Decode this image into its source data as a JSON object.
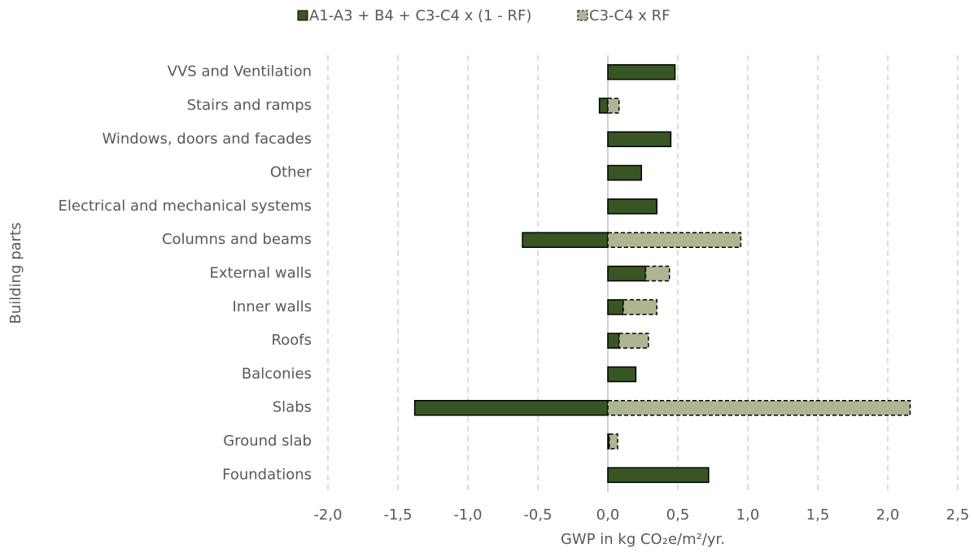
{
  "chart_data": {
    "type": "stacked-bar-horizontal",
    "categories": [
      "VVS and Ventilation",
      "Stairs and ramps",
      "Windows, doors and facades",
      "Other",
      "Electrical and mechanical systems",
      "Columns and beams",
      "External walls",
      "Inner walls",
      "Roofs",
      "Balconies",
      "Slabs",
      "Ground slab",
      "Foundations"
    ],
    "series": [
      {
        "name": "A1-A3 + B4 + C3-C4 x (1 - RF)",
        "color": "#375623",
        "values": [
          0.48,
          -0.06,
          0.45,
          0.24,
          0.35,
          -0.61,
          0.27,
          0.11,
          0.08,
          0.2,
          -1.38,
          0.01,
          0.72
        ]
      },
      {
        "name": "C3-C4 x RF",
        "color": "#adb592",
        "values": [
          0,
          0.08,
          0,
          0,
          0,
          0.95,
          0.17,
          0.24,
          0.21,
          0,
          2.16,
          0.06,
          0
        ]
      }
    ],
    "xlabel": "GWP in kg CO₂e/m²/yr.",
    "ylabel": "Building parts",
    "xlim": [
      -2.0,
      2.5
    ],
    "xticks": [
      {
        "value": -2.0,
        "label": "-2,0"
      },
      {
        "value": -1.5,
        "label": "-1,5"
      },
      {
        "value": -1.0,
        "label": "-1,0"
      },
      {
        "value": -0.5,
        "label": "-0,5"
      },
      {
        "value": 0.0,
        "label": "0,0"
      },
      {
        "value": 0.5,
        "label": "0,5"
      },
      {
        "value": 1.0,
        "label": "1,0"
      },
      {
        "value": 1.5,
        "label": "1,5"
      },
      {
        "value": 2.0,
        "label": "2,0"
      },
      {
        "value": 2.5,
        "label": "2,5"
      }
    ],
    "grid": true,
    "legend": "top"
  }
}
